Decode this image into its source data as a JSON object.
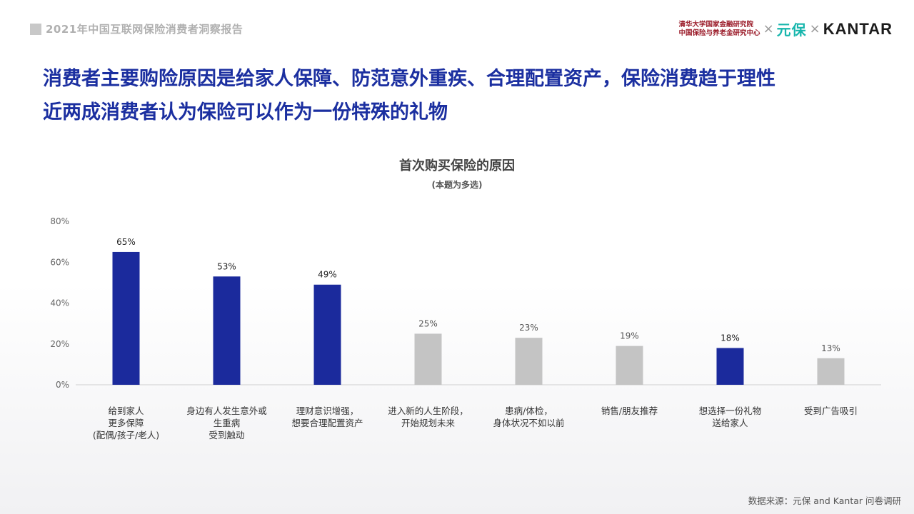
{
  "header": {
    "report_title": "2021年中国互联网保险消费者洞察报告",
    "logos": {
      "institute_line1": "清华大学国家金融研究院",
      "institute_line2": "中国保险与养老金研究中心",
      "times": "×",
      "yuanbao": "元保",
      "kantar": "KANTAR"
    }
  },
  "headline": {
    "line1": "消费者主要购险原因是给家人保障、防范意外重疾、合理配置资产，保险消费趋于理性",
    "line2": "近两成消费者认为保险可以作为一份特殊的礼物"
  },
  "chart_data": {
    "type": "bar",
    "title": "首次购买保险的原因",
    "subtitle": "(本题为多选)",
    "categories": [
      "给到家人\n更多保障\n(配偶/孩子/老人)",
      "身边有人发生意外或\n生重病\n受到触动",
      "理财意识增强，\n想要合理配置资产",
      "进入新的人生阶段，\n开始规划未来",
      "患病/体检，\n身体状况不如以前",
      "销售/朋友推荐",
      "想选择一份礼物\n送给家人",
      "受到广告吸引"
    ],
    "values": [
      65,
      53,
      49,
      25,
      23,
      19,
      18,
      13
    ],
    "value_labels": [
      "65%",
      "53%",
      "49%",
      "25%",
      "23%",
      "19%",
      "18%",
      "13%"
    ],
    "highlight": [
      true,
      true,
      true,
      false,
      false,
      false,
      true,
      false
    ],
    "ylim": [
      0,
      80
    ],
    "yticks": [
      "0%",
      "20%",
      "40%",
      "60%",
      "80%"
    ],
    "colors": {
      "highlight": "#1b2a9c",
      "muted": "#c4c4c4"
    },
    "grid": false
  },
  "footer": {
    "source": "数据来源：元保 and Kantar 问卷调研"
  }
}
